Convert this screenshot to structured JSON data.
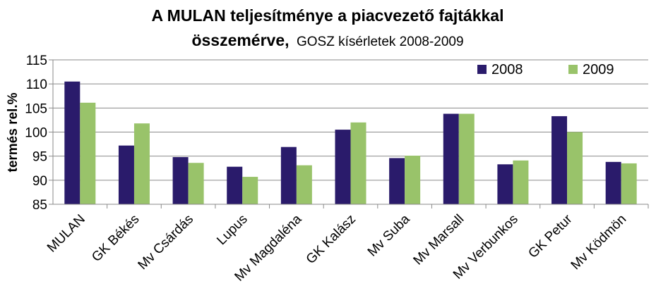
{
  "chart_data": {
    "type": "bar",
    "title_line1": "A MULAN teljesítménye a piacvezető fajtákkal",
    "title_line2_bold": "összemérve,",
    "title_line2_normal": "GOSZ kísérletek 2008-2009",
    "ylabel": "termés rel.%",
    "xlabel": "",
    "ylim": [
      85,
      115
    ],
    "yticks": [
      "85",
      "90",
      "95",
      "100",
      "105",
      "110",
      "115"
    ],
    "grid": true,
    "legend_position": "top-right",
    "categories": [
      "MULAN",
      "GK Békés",
      "Mv Csárdás",
      "Lupus",
      "Mv Magdaléna",
      "GK Kalász",
      "Mv Suba",
      "Mv Marsall",
      "Mv Verbunkos",
      "GK Petur",
      "Mv Ködmön"
    ],
    "series": [
      {
        "name": "2008",
        "color": "#2a1b6b",
        "values": [
          110.5,
          97.2,
          94.8,
          92.8,
          96.9,
          100.5,
          94.6,
          103.8,
          93.3,
          103.3,
          93.8
        ]
      },
      {
        "name": "2009",
        "color": "#99c36a",
        "values": [
          106.1,
          101.8,
          93.6,
          90.7,
          93.1,
          102.0,
          95.1,
          103.8,
          94.1,
          100.0,
          93.5
        ]
      }
    ]
  }
}
